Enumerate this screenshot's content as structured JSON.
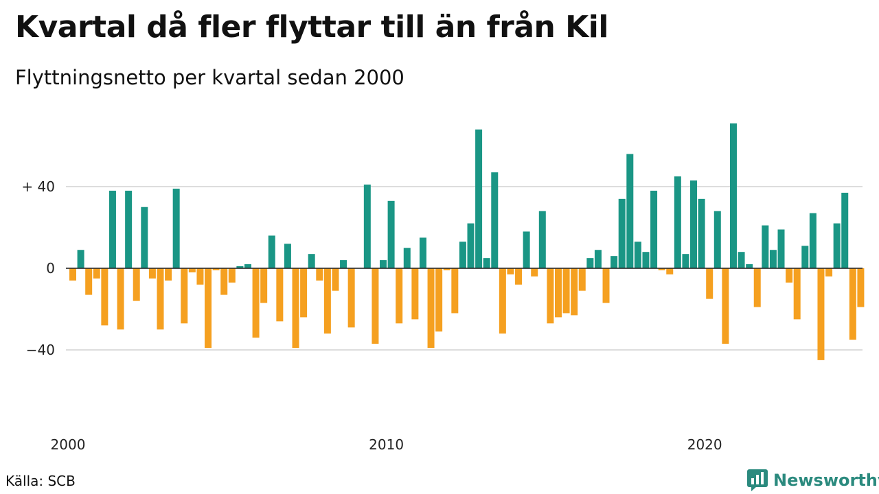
{
  "header": {
    "title": "Kvartal då fler flyttar till än från Kil",
    "subtitle": "Flyttningsnetto per kvartal sedan 2000"
  },
  "footer": {
    "source": "Källa: SCB",
    "brand": "Newsworthy"
  },
  "colors": {
    "positive": "#1a9685",
    "negative": "#f5a020",
    "grid": "#dddddd",
    "brand": "#2b8a7e"
  },
  "icons": {
    "brand": "bar-chart-speech-icon"
  },
  "chart_data": {
    "type": "bar",
    "title": "Kvartal då fler flyttar till än från Kil",
    "subtitle": "Flyttningsnetto per kvartal sedan 2000",
    "xlabel": "",
    "ylabel": "",
    "ylim": [
      -50,
      72
    ],
    "yticks": [
      40,
      0,
      -40
    ],
    "ytick_labels": [
      "+ 40",
      "0",
      "−40"
    ],
    "xticks": [
      2000,
      2010,
      2020
    ],
    "xtick_labels": [
      "2000",
      "2010",
      "2020"
    ],
    "grid": true,
    "start": "2000 Q1",
    "frequency": "quarterly",
    "values": [
      -6,
      9,
      -13,
      -5,
      -28,
      38,
      -30,
      38,
      -16,
      30,
      -5,
      -30,
      -6,
      39,
      -27,
      -2,
      -8,
      -39,
      -1,
      -13,
      -7,
      1,
      2,
      -34,
      -17,
      16,
      -26,
      12,
      -39,
      -24,
      7,
      -6,
      -32,
      -11,
      4,
      -29,
      0,
      41,
      -37,
      4,
      33,
      -27,
      10,
      -25,
      15,
      -39,
      -31,
      -1,
      -22,
      13,
      22,
      68,
      5,
      47,
      -32,
      -3,
      -8,
      18,
      -4,
      28,
      -27,
      -24,
      -22,
      -23,
      -11,
      5,
      9,
      -17,
      6,
      34,
      56,
      13,
      8,
      38,
      -1,
      -3,
      45,
      7,
      43,
      34,
      -15,
      28,
      -37,
      71,
      8,
      2,
      -19,
      21,
      9,
      19,
      -7,
      -25,
      11,
      27,
      -45,
      -4,
      22,
      37,
      -35,
      -19
    ]
  }
}
